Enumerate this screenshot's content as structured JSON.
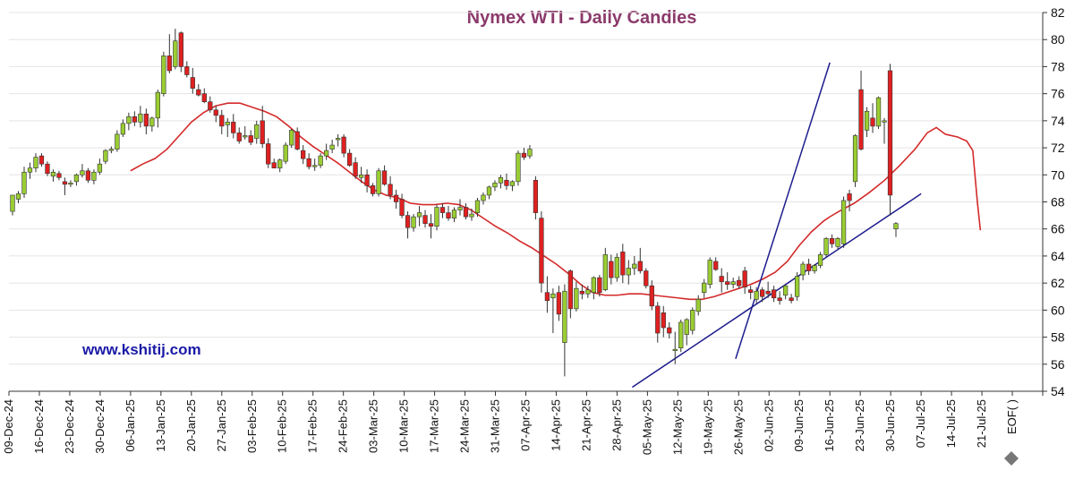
{
  "chart_data": {
    "type": "candlestick",
    "title": "Nymex  WTI - Daily Candles",
    "watermark": "www.kshitij.com",
    "ylim": [
      54,
      82
    ],
    "y_ticks": [
      54,
      56,
      58,
      60,
      62,
      64,
      66,
      68,
      70,
      72,
      74,
      76,
      78,
      80,
      82
    ],
    "x_labels": [
      "09-Dec-24",
      "16-Dec-24",
      "23-Dec-24",
      "30-Dec-24",
      "06-Jan-25",
      "13-Jan-25",
      "20-Jan-25",
      "27-Jan-25",
      "03-Feb-25",
      "10-Feb-25",
      "17-Feb-25",
      "24-Feb-25",
      "03-Mar-25",
      "10-Mar-25",
      "17-Mar-25",
      "24-Mar-25",
      "31-Mar-25",
      "07-Apr-25",
      "14-Apr-25",
      "21-Apr-25",
      "28-Apr-25",
      "05-May-25",
      "12-May-25",
      "19-May-25",
      "26-May-25",
      "02-Jun-25",
      "09-Jun-25",
      "16-Jun-25",
      "23-Jun-25",
      "30-Jun-25",
      "07-Jul-25",
      "14-Jul-25",
      "21-Jul-25",
      "EOF( )"
    ],
    "colors": {
      "up": "#9acd32",
      "down": "#e02020",
      "ma": "#d42a2a",
      "trend": "#1c1c8c",
      "title": "#8b3a6b",
      "watermark": "#1a1aa6"
    },
    "candles": [
      {
        "o": 67.3,
        "h": 68.3,
        "l": 67.0,
        "c": 68.5
      },
      {
        "o": 68.2,
        "h": 68.8,
        "l": 67.9,
        "c": 68.6
      },
      {
        "o": 68.6,
        "h": 70.6,
        "l": 68.3,
        "c": 70.2
      },
      {
        "o": 70.2,
        "h": 70.9,
        "l": 69.7,
        "c": 70.5
      },
      {
        "o": 70.5,
        "h": 71.6,
        "l": 70.2,
        "c": 71.3
      },
      {
        "o": 71.4,
        "h": 71.6,
        "l": 70.6,
        "c": 70.8
      },
      {
        "o": 70.8,
        "h": 71.0,
        "l": 69.9,
        "c": 70.1
      },
      {
        "o": 69.9,
        "h": 70.4,
        "l": 69.5,
        "c": 70.2
      },
      {
        "o": 70.1,
        "h": 70.3,
        "l": 69.6,
        "c": 69.8
      },
      {
        "o": 69.5,
        "h": 69.8,
        "l": 68.5,
        "c": 69.3
      },
      {
        "o": 69.3,
        "h": 69.6,
        "l": 69.1,
        "c": 69.4
      },
      {
        "o": 69.5,
        "h": 70.1,
        "l": 69.2,
        "c": 70.0
      },
      {
        "o": 70.0,
        "h": 70.8,
        "l": 69.8,
        "c": 70.3
      },
      {
        "o": 70.3,
        "h": 70.5,
        "l": 69.4,
        "c": 69.6
      },
      {
        "o": 69.6,
        "h": 70.4,
        "l": 69.3,
        "c": 70.2
      },
      {
        "o": 70.2,
        "h": 71.2,
        "l": 70.0,
        "c": 70.8
      },
      {
        "o": 71.0,
        "h": 71.9,
        "l": 70.8,
        "c": 71.8
      },
      {
        "o": 71.8,
        "h": 72.1,
        "l": 71.6,
        "c": 71.9
      },
      {
        "o": 71.9,
        "h": 73.3,
        "l": 71.7,
        "c": 73.0
      },
      {
        "o": 73.0,
        "h": 74.1,
        "l": 72.8,
        "c": 73.8
      },
      {
        "o": 73.8,
        "h": 74.6,
        "l": 73.3,
        "c": 74.3
      },
      {
        "o": 74.3,
        "h": 74.7,
        "l": 73.6,
        "c": 73.9
      },
      {
        "o": 73.9,
        "h": 75.1,
        "l": 73.5,
        "c": 74.5
      },
      {
        "o": 74.5,
        "h": 74.9,
        "l": 73.0,
        "c": 73.6
      },
      {
        "o": 73.6,
        "h": 74.3,
        "l": 73.2,
        "c": 74.2
      },
      {
        "o": 74.2,
        "h": 76.3,
        "l": 73.5,
        "c": 76.1
      },
      {
        "o": 76.0,
        "h": 79.1,
        "l": 75.8,
        "c": 78.8
      },
      {
        "o": 78.8,
        "h": 80.4,
        "l": 77.5,
        "c": 77.7
      },
      {
        "o": 78.0,
        "h": 80.8,
        "l": 77.8,
        "c": 79.9
      },
      {
        "o": 80.5,
        "h": 80.6,
        "l": 77.6,
        "c": 78.0
      },
      {
        "o": 78.0,
        "h": 78.4,
        "l": 77.2,
        "c": 77.4
      },
      {
        "o": 77.2,
        "h": 77.9,
        "l": 76.0,
        "c": 76.4
      },
      {
        "o": 76.3,
        "h": 76.7,
        "l": 75.8,
        "c": 75.9
      },
      {
        "o": 76.0,
        "h": 76.4,
        "l": 75.3,
        "c": 75.4
      },
      {
        "o": 75.4,
        "h": 75.8,
        "l": 74.6,
        "c": 74.8
      },
      {
        "o": 74.8,
        "h": 75.1,
        "l": 73.9,
        "c": 74.4
      },
      {
        "o": 74.4,
        "h": 74.8,
        "l": 73.0,
        "c": 73.6
      },
      {
        "o": 73.7,
        "h": 74.2,
        "l": 72.8,
        "c": 73.9
      },
      {
        "o": 73.9,
        "h": 74.5,
        "l": 72.7,
        "c": 73.1
      },
      {
        "o": 73.1,
        "h": 73.5,
        "l": 72.3,
        "c": 72.5
      },
      {
        "o": 72.9,
        "h": 73.6,
        "l": 72.6,
        "c": 72.9
      },
      {
        "o": 72.9,
        "h": 73.3,
        "l": 72.2,
        "c": 72.4
      },
      {
        "o": 72.7,
        "h": 74.0,
        "l": 72.3,
        "c": 73.7
      },
      {
        "o": 74.0,
        "h": 75.1,
        "l": 72.0,
        "c": 72.3
      },
      {
        "o": 72.3,
        "h": 72.7,
        "l": 70.5,
        "c": 70.8
      },
      {
        "o": 70.9,
        "h": 71.2,
        "l": 70.5,
        "c": 70.5
      },
      {
        "o": 70.5,
        "h": 71.2,
        "l": 70.2,
        "c": 71.1
      },
      {
        "o": 71.0,
        "h": 72.4,
        "l": 70.8,
        "c": 72.2
      },
      {
        "o": 72.2,
        "h": 73.4,
        "l": 72.0,
        "c": 73.3
      },
      {
        "o": 73.2,
        "h": 73.5,
        "l": 71.8,
        "c": 71.9
      },
      {
        "o": 71.8,
        "h": 72.2,
        "l": 70.8,
        "c": 71.2
      },
      {
        "o": 71.2,
        "h": 71.6,
        "l": 70.4,
        "c": 70.6
      },
      {
        "o": 70.6,
        "h": 71.2,
        "l": 70.3,
        "c": 70.7
      },
      {
        "o": 70.7,
        "h": 71.6,
        "l": 70.5,
        "c": 71.4
      },
      {
        "o": 71.4,
        "h": 72.3,
        "l": 71.1,
        "c": 71.8
      },
      {
        "o": 71.9,
        "h": 72.6,
        "l": 71.6,
        "c": 72.2
      },
      {
        "o": 72.6,
        "h": 73.0,
        "l": 72.1,
        "c": 72.7
      },
      {
        "o": 72.8,
        "h": 73.0,
        "l": 71.3,
        "c": 71.6
      },
      {
        "o": 71.6,
        "h": 71.9,
        "l": 70.6,
        "c": 70.7
      },
      {
        "o": 70.9,
        "h": 71.3,
        "l": 69.7,
        "c": 69.9
      },
      {
        "o": 69.8,
        "h": 70.6,
        "l": 69.4,
        "c": 70.0
      },
      {
        "o": 70.0,
        "h": 70.4,
        "l": 68.7,
        "c": 69.2
      },
      {
        "o": 69.2,
        "h": 69.4,
        "l": 68.4,
        "c": 68.6
      },
      {
        "o": 68.6,
        "h": 70.5,
        "l": 68.4,
        "c": 70.3
      },
      {
        "o": 70.3,
        "h": 70.7,
        "l": 69.2,
        "c": 69.3
      },
      {
        "o": 69.3,
        "h": 69.9,
        "l": 68.2,
        "c": 68.5
      },
      {
        "o": 68.5,
        "h": 68.9,
        "l": 67.5,
        "c": 68.0
      },
      {
        "o": 68.2,
        "h": 68.6,
        "l": 66.8,
        "c": 67.0
      },
      {
        "o": 67.0,
        "h": 67.3,
        "l": 65.3,
        "c": 66.1
      },
      {
        "o": 66.1,
        "h": 67.1,
        "l": 65.8,
        "c": 66.9
      },
      {
        "o": 66.9,
        "h": 67.7,
        "l": 66.2,
        "c": 67.2
      },
      {
        "o": 67.0,
        "h": 67.4,
        "l": 66.1,
        "c": 66.4
      },
      {
        "o": 66.4,
        "h": 67.1,
        "l": 65.3,
        "c": 66.2
      },
      {
        "o": 66.2,
        "h": 67.8,
        "l": 65.9,
        "c": 67.6
      },
      {
        "o": 67.6,
        "h": 67.9,
        "l": 66.8,
        "c": 67.2
      },
      {
        "o": 67.2,
        "h": 67.7,
        "l": 66.6,
        "c": 66.8
      },
      {
        "o": 66.8,
        "h": 67.6,
        "l": 66.5,
        "c": 67.4
      },
      {
        "o": 67.4,
        "h": 68.2,
        "l": 67.0,
        "c": 67.6
      },
      {
        "o": 67.6,
        "h": 67.9,
        "l": 66.7,
        "c": 66.9
      },
      {
        "o": 66.9,
        "h": 67.5,
        "l": 66.6,
        "c": 67.1
      },
      {
        "o": 67.2,
        "h": 68.3,
        "l": 66.9,
        "c": 68.1
      },
      {
        "o": 68.1,
        "h": 68.7,
        "l": 67.8,
        "c": 68.5
      },
      {
        "o": 68.5,
        "h": 69.2,
        "l": 68.2,
        "c": 69.1
      },
      {
        "o": 69.1,
        "h": 69.6,
        "l": 68.8,
        "c": 69.4
      },
      {
        "o": 69.4,
        "h": 70.0,
        "l": 69.0,
        "c": 69.8
      },
      {
        "o": 69.6,
        "h": 70.1,
        "l": 68.9,
        "c": 69.2
      },
      {
        "o": 69.2,
        "h": 69.6,
        "l": 68.8,
        "c": 69.5
      },
      {
        "o": 69.5,
        "h": 71.8,
        "l": 69.2,
        "c": 71.6
      },
      {
        "o": 71.6,
        "h": 72.0,
        "l": 71.1,
        "c": 71.3
      },
      {
        "o": 71.4,
        "h": 72.2,
        "l": 71.2,
        "c": 71.9
      },
      {
        "o": 69.6,
        "h": 69.9,
        "l": 66.7,
        "c": 67.2
      },
      {
        "o": 66.8,
        "h": 67.3,
        "l": 61.3,
        "c": 62.0
      },
      {
        "o": 61.3,
        "h": 62.5,
        "l": 59.8,
        "c": 60.7
      },
      {
        "o": 60.9,
        "h": 61.6,
        "l": 58.3,
        "c": 61.2
      },
      {
        "o": 61.3,
        "h": 61.8,
        "l": 59.2,
        "c": 59.7
      },
      {
        "o": 57.6,
        "h": 61.9,
        "l": 55.1,
        "c": 61.4
      },
      {
        "o": 62.9,
        "h": 63.0,
        "l": 59.4,
        "c": 60.1
      },
      {
        "o": 60.1,
        "h": 62.1,
        "l": 59.9,
        "c": 61.6
      },
      {
        "o": 61.4,
        "h": 61.9,
        "l": 60.8,
        "c": 61.2
      },
      {
        "o": 61.2,
        "h": 61.8,
        "l": 60.9,
        "c": 61.5
      },
      {
        "o": 61.3,
        "h": 62.5,
        "l": 60.8,
        "c": 62.4
      },
      {
        "o": 62.4,
        "h": 62.6,
        "l": 61.0,
        "c": 61.3
      },
      {
        "o": 61.5,
        "h": 64.6,
        "l": 61.4,
        "c": 64.1
      },
      {
        "o": 63.6,
        "h": 64.1,
        "l": 61.9,
        "c": 62.4
      },
      {
        "o": 62.4,
        "h": 64.2,
        "l": 62.1,
        "c": 63.9
      },
      {
        "o": 64.3,
        "h": 64.9,
        "l": 62.0,
        "c": 62.6
      },
      {
        "o": 62.6,
        "h": 63.7,
        "l": 61.9,
        "c": 63.1
      },
      {
        "o": 63.1,
        "h": 64.0,
        "l": 62.6,
        "c": 63.4
      },
      {
        "o": 63.6,
        "h": 64.6,
        "l": 62.7,
        "c": 62.9
      },
      {
        "o": 62.9,
        "h": 63.1,
        "l": 61.6,
        "c": 61.8
      },
      {
        "o": 61.8,
        "h": 62.2,
        "l": 60.0,
        "c": 60.3
      },
      {
        "o": 60.3,
        "h": 60.6,
        "l": 57.6,
        "c": 58.3
      },
      {
        "o": 59.8,
        "h": 60.3,
        "l": 58.0,
        "c": 58.7
      },
      {
        "o": 58.7,
        "h": 59.1,
        "l": 57.9,
        "c": 58.3
      },
      {
        "o": 57.0,
        "h": 58.4,
        "l": 56.0,
        "c": 57.1
      },
      {
        "o": 57.2,
        "h": 59.3,
        "l": 56.9,
        "c": 59.1
      },
      {
        "o": 58.2,
        "h": 59.4,
        "l": 57.4,
        "c": 59.3
      },
      {
        "o": 58.5,
        "h": 60.2,
        "l": 58.2,
        "c": 60.0
      },
      {
        "o": 59.9,
        "h": 61.1,
        "l": 59.6,
        "c": 60.8
      },
      {
        "o": 61.3,
        "h": 62.3,
        "l": 60.9,
        "c": 62.0
      },
      {
        "o": 61.9,
        "h": 63.9,
        "l": 61.6,
        "c": 63.7
      },
      {
        "o": 63.6,
        "h": 63.9,
        "l": 62.9,
        "c": 63.0
      },
      {
        "o": 62.5,
        "h": 63.1,
        "l": 61.3,
        "c": 62.1
      },
      {
        "o": 62.1,
        "h": 62.8,
        "l": 61.5,
        "c": 61.9
      },
      {
        "o": 61.9,
        "h": 62.4,
        "l": 61.6,
        "c": 62.1
      },
      {
        "o": 62.2,
        "h": 62.5,
        "l": 61.6,
        "c": 61.8
      },
      {
        "o": 62.9,
        "h": 63.2,
        "l": 61.2,
        "c": 61.7
      },
      {
        "o": 61.5,
        "h": 61.8,
        "l": 60.8,
        "c": 61.3
      },
      {
        "o": 60.8,
        "h": 61.7,
        "l": 60.5,
        "c": 61.4
      },
      {
        "o": 61.5,
        "h": 61.7,
        "l": 60.6,
        "c": 61.0
      },
      {
        "o": 61.4,
        "h": 62.1,
        "l": 60.9,
        "c": 61.2
      },
      {
        "o": 61.5,
        "h": 61.8,
        "l": 60.6,
        "c": 60.9
      },
      {
        "o": 60.9,
        "h": 61.4,
        "l": 60.4,
        "c": 60.7
      },
      {
        "o": 61.1,
        "h": 61.9,
        "l": 60.8,
        "c": 61.8
      },
      {
        "o": 60.9,
        "h": 61.2,
        "l": 60.5,
        "c": 60.7
      },
      {
        "o": 61.0,
        "h": 62.8,
        "l": 60.7,
        "c": 62.5
      },
      {
        "o": 62.6,
        "h": 63.6,
        "l": 62.2,
        "c": 63.4
      },
      {
        "o": 63.4,
        "h": 63.8,
        "l": 62.6,
        "c": 62.9
      },
      {
        "o": 62.9,
        "h": 63.4,
        "l": 62.7,
        "c": 63.3
      },
      {
        "o": 63.3,
        "h": 64.3,
        "l": 63.1,
        "c": 64.1
      },
      {
        "o": 64.1,
        "h": 65.4,
        "l": 63.9,
        "c": 65.3
      },
      {
        "o": 65.3,
        "h": 65.6,
        "l": 64.6,
        "c": 64.9
      },
      {
        "o": 64.7,
        "h": 65.4,
        "l": 64.5,
        "c": 65.3
      },
      {
        "o": 64.9,
        "h": 68.4,
        "l": 64.6,
        "c": 68.1
      },
      {
        "o": 68.6,
        "h": 68.9,
        "l": 67.3,
        "c": 68.1
      },
      {
        "o": 69.5,
        "h": 73.0,
        "l": 69.1,
        "c": 72.9
      },
      {
        "o": 76.3,
        "h": 77.7,
        "l": 71.8,
        "c": 71.9
      },
      {
        "o": 73.3,
        "h": 75.0,
        "l": 72.8,
        "c": 74.7
      },
      {
        "o": 74.2,
        "h": 75.3,
        "l": 73.1,
        "c": 73.6
      },
      {
        "o": 73.6,
        "h": 75.8,
        "l": 73.4,
        "c": 75.7
      },
      {
        "o": 74.0,
        "h": 74.2,
        "l": 72.3,
        "c": 74.0
      },
      {
        "o": 77.7,
        "h": 78.2,
        "l": 67.0,
        "c": 68.5
      },
      {
        "o": 66.0,
        "h": 66.5,
        "l": 65.4,
        "c": 66.4
      }
    ],
    "moving_average": [
      {
        "x": 0.0,
        "y": 70.3
      },
      {
        "x": 0.4,
        "y": 70.8
      },
      {
        "x": 0.8,
        "y": 71.2
      },
      {
        "x": 1.2,
        "y": 71.9
      },
      {
        "x": 1.6,
        "y": 72.9
      },
      {
        "x": 2.0,
        "y": 73.9
      },
      {
        "x": 2.4,
        "y": 74.6
      },
      {
        "x": 2.8,
        "y": 75.1
      },
      {
        "x": 3.2,
        "y": 75.3
      },
      {
        "x": 3.6,
        "y": 75.3
      },
      {
        "x": 4.0,
        "y": 75.0
      },
      {
        "x": 4.4,
        "y": 74.7
      },
      {
        "x": 4.8,
        "y": 74.3
      },
      {
        "x": 5.2,
        "y": 73.6
      },
      {
        "x": 5.6,
        "y": 72.8
      },
      {
        "x": 6.0,
        "y": 72.1
      },
      {
        "x": 6.4,
        "y": 71.5
      },
      {
        "x": 6.8,
        "y": 70.9
      },
      {
        "x": 7.2,
        "y": 70.2
      },
      {
        "x": 7.6,
        "y": 69.5
      },
      {
        "x": 8.0,
        "y": 68.9
      },
      {
        "x": 8.4,
        "y": 68.5
      },
      {
        "x": 8.8,
        "y": 68.3
      },
      {
        "x": 9.2,
        "y": 67.9
      },
      {
        "x": 9.6,
        "y": 67.8
      },
      {
        "x": 10.0,
        "y": 67.8
      },
      {
        "x": 10.4,
        "y": 67.9
      },
      {
        "x": 10.8,
        "y": 67.8
      },
      {
        "x": 11.2,
        "y": 67.4
      },
      {
        "x": 11.6,
        "y": 66.8
      },
      {
        "x": 12.0,
        "y": 66.2
      },
      {
        "x": 12.4,
        "y": 65.7
      },
      {
        "x": 12.8,
        "y": 65.1
      },
      {
        "x": 13.2,
        "y": 64.6
      },
      {
        "x": 13.6,
        "y": 64.0
      },
      {
        "x": 14.0,
        "y": 63.4
      },
      {
        "x": 14.4,
        "y": 62.7
      },
      {
        "x": 14.8,
        "y": 61.9
      },
      {
        "x": 15.2,
        "y": 61.3
      },
      {
        "x": 15.6,
        "y": 61.1
      },
      {
        "x": 16.0,
        "y": 61.1
      },
      {
        "x": 16.4,
        "y": 61.2
      },
      {
        "x": 16.8,
        "y": 61.2
      },
      {
        "x": 17.2,
        "y": 61.1
      },
      {
        "x": 17.6,
        "y": 61.0
      },
      {
        "x": 18.0,
        "y": 60.9
      },
      {
        "x": 18.4,
        "y": 60.8
      },
      {
        "x": 18.8,
        "y": 60.8
      },
      {
        "x": 19.2,
        "y": 61.0
      },
      {
        "x": 19.6,
        "y": 61.3
      },
      {
        "x": 20.0,
        "y": 61.6
      },
      {
        "x": 20.4,
        "y": 61.9
      },
      {
        "x": 20.8,
        "y": 62.3
      },
      {
        "x": 21.2,
        "y": 62.8
      },
      {
        "x": 21.6,
        "y": 63.6
      },
      {
        "x": 22.0,
        "y": 64.8
      },
      {
        "x": 22.4,
        "y": 65.8
      },
      {
        "x": 22.8,
        "y": 66.6
      },
      {
        "x": 23.0,
        "y": 66.9
      },
      {
        "x": 23.3,
        "y": 67.3
      },
      {
        "x": 23.8,
        "y": 67.9
      },
      {
        "x": 24.3,
        "y": 68.7
      },
      {
        "x": 24.8,
        "y": 69.6
      },
      {
        "x": 25.3,
        "y": 70.7
      },
      {
        "x": 25.8,
        "y": 71.9
      },
      {
        "x": 26.2,
        "y": 73.1
      },
      {
        "x": 26.5,
        "y": 73.5
      },
      {
        "x": 26.8,
        "y": 73.0
      },
      {
        "x": 27.2,
        "y": 72.8
      },
      {
        "x": 27.5,
        "y": 72.5
      },
      {
        "x": 27.7,
        "y": 71.8
      },
      {
        "x": 27.85,
        "y": 68.0
      },
      {
        "x": 27.95,
        "y": 65.9
      }
    ],
    "trendlines": [
      {
        "x1": 20.5,
        "y1": 54.3,
        "x2": 30.0,
        "y2": 68.6
      },
      {
        "x1": 23.9,
        "y1": 56.4,
        "x2": 27.0,
        "y2": 78.3
      }
    ]
  }
}
